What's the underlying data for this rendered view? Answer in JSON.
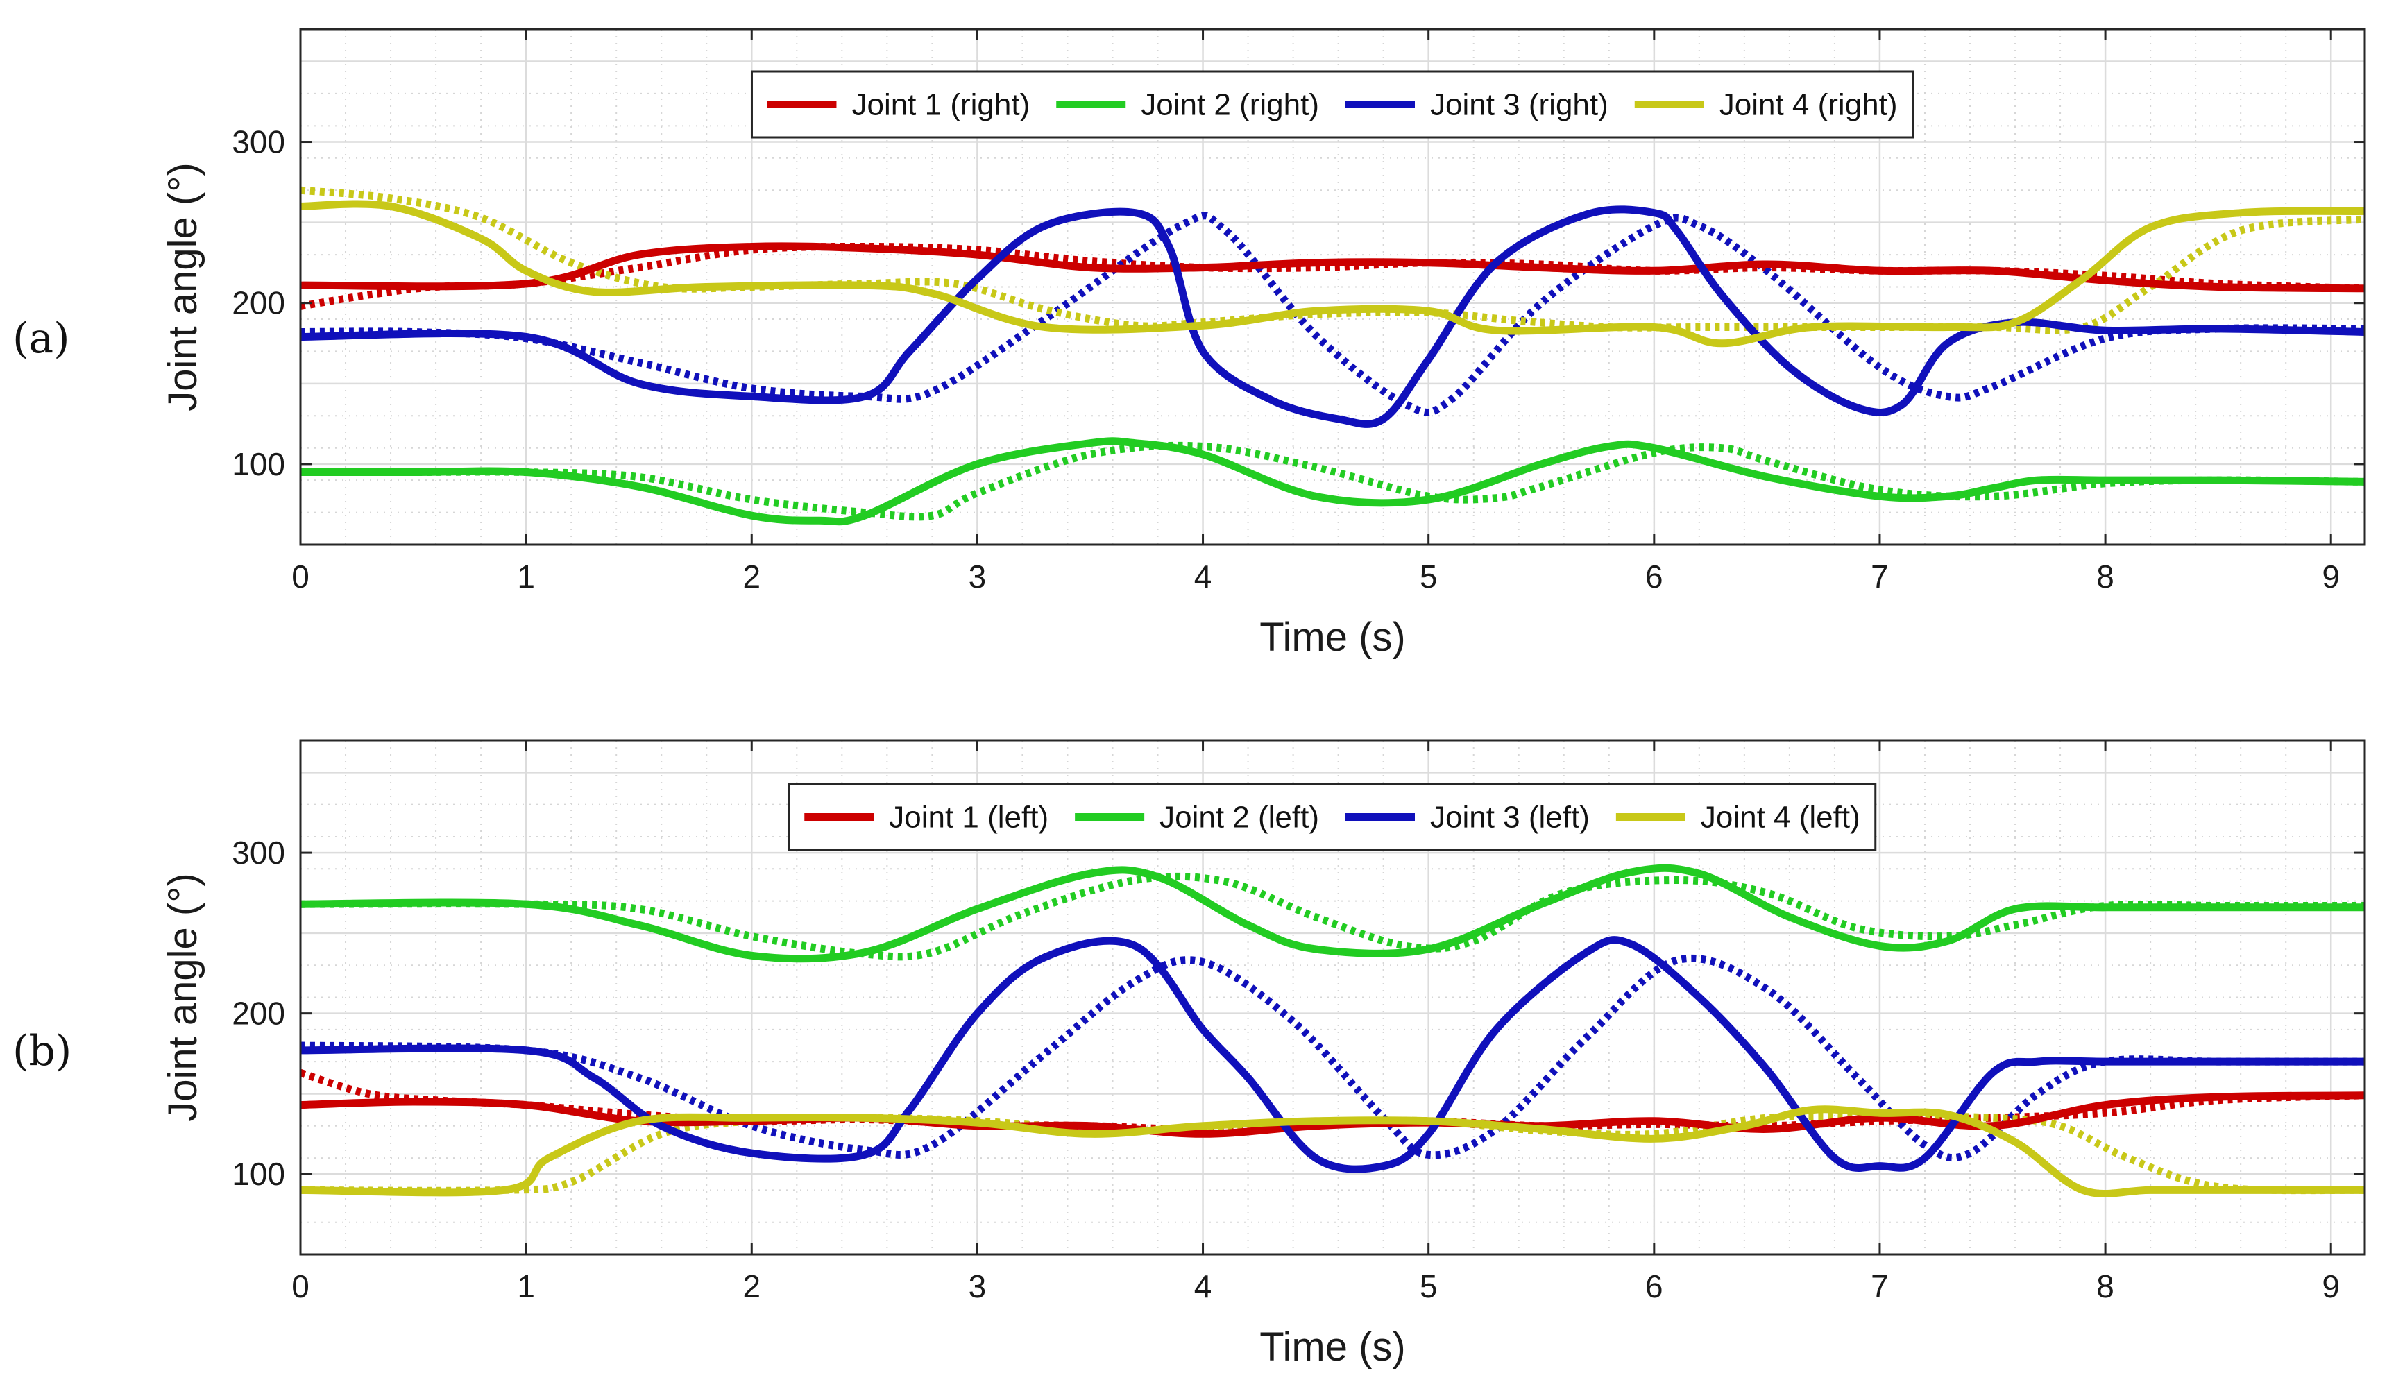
{
  "chart_data": [
    {
      "type": "line",
      "panel_label": "(a)",
      "xlabel": "Time (s)",
      "ylabel": "Joint angle (°)",
      "xlim": [
        0,
        9.15
      ],
      "ylim": [
        50,
        370
      ],
      "xticks": [
        0,
        1,
        2,
        3,
        4,
        5,
        6,
        7,
        8,
        9
      ],
      "yticks": [
        100,
        200,
        300
      ],
      "grid": true,
      "legend_position": "top-center",
      "series": [
        {
          "name": "Joint 1 (right)",
          "color": "#cc0000",
          "style": "solid",
          "x": [
            0,
            1,
            1.5,
            2,
            2.5,
            3,
            3.5,
            4,
            4.5,
            5,
            5.5,
            6,
            6.5,
            7,
            7.5,
            8,
            8.5,
            9.15
          ],
          "y": [
            211,
            212,
            230,
            235,
            234,
            230,
            222,
            222,
            225,
            225,
            222,
            220,
            224,
            220,
            220,
            214,
            210,
            209
          ]
        },
        {
          "name": "",
          "color": "#cc0000",
          "style": "dotted",
          "x": [
            0,
            0.3,
            0.6,
            1,
            1.5,
            2,
            2.5,
            3,
            3.5,
            4,
            4.5,
            5,
            5.5,
            6,
            6.5,
            7,
            7.5,
            8,
            8.5,
            9.15
          ],
          "y": [
            198,
            205,
            210,
            212,
            222,
            233,
            235,
            233,
            226,
            222,
            222,
            225,
            224,
            220,
            222,
            220,
            220,
            217,
            212,
            209
          ]
        },
        {
          "name": "Joint 2 (right)",
          "color": "#22cc22",
          "style": "solid",
          "x": [
            0,
            0.5,
            1,
            1.5,
            2,
            2.3,
            2.5,
            3,
            3.5,
            3.7,
            4,
            4.5,
            5,
            5.5,
            5.8,
            6,
            6.5,
            7,
            7.3,
            7.5,
            7.7,
            8,
            8.5,
            9.15
          ],
          "y": [
            95,
            95,
            95,
            86,
            68,
            65,
            68,
            100,
            113,
            113,
            106,
            80,
            78,
            100,
            111,
            110,
            92,
            80,
            80,
            85,
            90,
            90,
            90,
            89
          ]
        },
        {
          "name": "",
          "color": "#22cc22",
          "style": "dotted",
          "x": [
            0,
            0.5,
            1,
            1.5,
            2,
            2.5,
            2.8,
            3,
            3.5,
            4,
            4.5,
            5,
            5.3,
            5.5,
            6,
            6.3,
            6.5,
            7,
            7.5,
            8,
            8.5,
            9.15
          ],
          "y": [
            95,
            95,
            95,
            92,
            78,
            70,
            68,
            82,
            106,
            111,
            98,
            80,
            79,
            86,
            107,
            110,
            102,
            84,
            80,
            88,
            90,
            89
          ]
        },
        {
          "name": "Joint 3 (right)",
          "color": "#1010bb",
          "style": "solid",
          "x": [
            0,
            1,
            1.5,
            2,
            2.5,
            2.7,
            3,
            3.3,
            3.7,
            3.85,
            4,
            4.3,
            4.6,
            4.8,
            5,
            5.3,
            5.7,
            6,
            6.1,
            6.3,
            6.6,
            6.9,
            7.1,
            7.3,
            7.6,
            8,
            8.5,
            9.15
          ],
          "y": [
            179,
            179,
            150,
            142,
            142,
            170,
            215,
            248,
            256,
            235,
            170,
            140,
            128,
            128,
            165,
            225,
            255,
            256,
            245,
            205,
            160,
            135,
            137,
            175,
            188,
            183,
            184,
            182
          ]
        },
        {
          "name": "",
          "color": "#1010bb",
          "style": "dotted",
          "x": [
            0,
            0.5,
            1,
            1.5,
            2,
            2.5,
            2.8,
            3.3,
            3.9,
            4.1,
            4.5,
            4.9,
            5.1,
            5.5,
            6,
            6.2,
            6.5,
            7,
            7.3,
            7.5,
            8,
            8.5,
            9.15
          ],
          "y": [
            182,
            182,
            178,
            163,
            147,
            142,
            145,
            190,
            248,
            245,
            180,
            137,
            140,
            200,
            248,
            248,
            220,
            160,
            142,
            148,
            178,
            184,
            184
          ]
        },
        {
          "name": "Joint 4 (right)",
          "color": "#c8c818",
          "style": "solid",
          "x": [
            0,
            0.4,
            0.8,
            1,
            1.3,
            1.8,
            2.5,
            2.8,
            3.3,
            4,
            4.5,
            5,
            5.3,
            6,
            6.3,
            6.7,
            7.3,
            7.6,
            7.9,
            8.2,
            8.6,
            9.15
          ],
          "y": [
            260,
            260,
            240,
            220,
            207,
            210,
            211,
            206,
            185,
            186,
            195,
            195,
            183,
            185,
            175,
            185,
            185,
            188,
            215,
            247,
            256,
            257
          ]
        },
        {
          "name": "",
          "color": "#c8c818",
          "style": "dotted",
          "x": [
            0,
            0.4,
            0.8,
            1.2,
            1.6,
            2,
            2.5,
            2.9,
            3.3,
            3.7,
            4,
            4.5,
            5,
            5.4,
            5.8,
            6.2,
            6.6,
            7,
            7.5,
            7.9,
            8.2,
            8.6,
            9.15
          ],
          "y": [
            270,
            265,
            253,
            225,
            210,
            210,
            212,
            212,
            196,
            186,
            188,
            193,
            194,
            189,
            185,
            185,
            185,
            185,
            185,
            185,
            210,
            245,
            252
          ]
        }
      ]
    },
    {
      "type": "line",
      "panel_label": "(b)",
      "xlabel": "Time (s)",
      "ylabel": "Joint angle (°)",
      "xlim": [
        0,
        9.15
      ],
      "ylim": [
        50,
        370
      ],
      "xticks": [
        0,
        1,
        2,
        3,
        4,
        5,
        6,
        7,
        8,
        9
      ],
      "yticks": [
        100,
        200,
        300
      ],
      "grid": true,
      "legend_position": "top-center",
      "series": [
        {
          "name": "Joint 1 (left)",
          "color": "#cc0000",
          "style": "solid",
          "x": [
            0,
            0.5,
            1,
            1.5,
            2,
            2.5,
            3,
            3.5,
            4,
            4.5,
            5,
            5.5,
            6,
            6.5,
            7,
            7.5,
            8,
            8.5,
            9.15
          ],
          "y": [
            143,
            145,
            143,
            133,
            133,
            135,
            130,
            130,
            125,
            130,
            132,
            130,
            133,
            128,
            135,
            130,
            143,
            148,
            149
          ]
        },
        {
          "name": "",
          "color": "#cc0000",
          "style": "dotted",
          "x": [
            0,
            0.3,
            0.6,
            1,
            1.5,
            2,
            2.5,
            3,
            3.5,
            4,
            4.5,
            5,
            5.5,
            6,
            6.5,
            7,
            7.5,
            8,
            8.5,
            9.15
          ],
          "y": [
            163,
            150,
            146,
            143,
            137,
            133,
            134,
            131,
            130,
            128,
            132,
            133,
            130,
            131,
            130,
            133,
            135,
            138,
            146,
            149
          ]
        },
        {
          "name": "Joint 2 (left)",
          "color": "#22cc22",
          "style": "solid",
          "x": [
            0,
            1,
            1.5,
            2,
            2.5,
            3,
            3.5,
            3.8,
            4.2,
            4.5,
            5,
            5.5,
            5.9,
            6.2,
            6.6,
            7,
            7.3,
            7.6,
            8,
            8.5,
            9.15
          ],
          "y": [
            268,
            268,
            255,
            236,
            238,
            265,
            287,
            285,
            255,
            240,
            240,
            268,
            288,
            287,
            260,
            242,
            245,
            265,
            266,
            266,
            266
          ]
        },
        {
          "name": "",
          "color": "#22cc22",
          "style": "dotted",
          "x": [
            0,
            1,
            1.5,
            2,
            2.5,
            2.8,
            3.2,
            3.7,
            4.1,
            4.5,
            4.9,
            5.2,
            5.6,
            6.1,
            6.5,
            6.9,
            7.3,
            7.6,
            8,
            8.5,
            9.15
          ],
          "y": [
            268,
            268,
            265,
            248,
            237,
            238,
            262,
            283,
            282,
            260,
            242,
            245,
            275,
            283,
            275,
            253,
            248,
            255,
            267,
            267,
            267
          ]
        },
        {
          "name": "Joint 3 (left)",
          "color": "#1010bb",
          "style": "solid",
          "x": [
            0,
            1,
            1.3,
            1.6,
            2,
            2.5,
            2.7,
            3,
            3.3,
            3.7,
            4,
            4.2,
            4.5,
            4.8,
            5,
            5.3,
            5.7,
            5.9,
            6.2,
            6.5,
            6.8,
            7,
            7.2,
            7.5,
            7.7,
            8,
            8.5,
            9.15
          ],
          "y": [
            177,
            177,
            160,
            130,
            113,
            112,
            140,
            200,
            235,
            242,
            190,
            160,
            110,
            105,
            125,
            190,
            238,
            243,
            210,
            165,
            110,
            105,
            110,
            163,
            170,
            170,
            170,
            170
          ]
        },
        {
          "name": "",
          "color": "#1010bb",
          "style": "dotted",
          "x": [
            0,
            1,
            1.5,
            2,
            2.5,
            2.8,
            3.3,
            3.7,
            4,
            4.4,
            4.8,
            5,
            5.3,
            5.7,
            6.1,
            6.5,
            6.9,
            7.2,
            7.4,
            7.7,
            8,
            8.5,
            9.15
          ],
          "y": [
            180,
            177,
            160,
            130,
            115,
            118,
            175,
            220,
            232,
            195,
            135,
            112,
            128,
            185,
            233,
            215,
            160,
            118,
            113,
            150,
            170,
            170,
            170
          ]
        },
        {
          "name": "Joint 4 (left)",
          "color": "#c8c818",
          "style": "solid",
          "x": [
            0,
            0.9,
            1.1,
            1.5,
            2,
            2.5,
            3,
            3.5,
            4,
            4.5,
            5,
            5.5,
            6,
            6.4,
            6.7,
            7,
            7.3,
            7.6,
            7.9,
            8.2,
            8.6,
            9.15
          ],
          "y": [
            90,
            90,
            110,
            133,
            135,
            135,
            132,
            125,
            130,
            133,
            133,
            128,
            122,
            130,
            140,
            138,
            137,
            120,
            90,
            90,
            90,
            90
          ]
        },
        {
          "name": "",
          "color": "#c8c818",
          "style": "dotted",
          "x": [
            0,
            0.9,
            1.2,
            1.6,
            2,
            2.5,
            3,
            3.5,
            4,
            4.5,
            5,
            5.5,
            6,
            6.5,
            7,
            7.5,
            7.8,
            8.1,
            8.5,
            9.15
          ],
          "y": [
            90,
            90,
            95,
            125,
            133,
            135,
            133,
            128,
            127,
            132,
            133,
            127,
            125,
            135,
            136,
            135,
            130,
            110,
            92,
            90
          ]
        }
      ]
    }
  ]
}
